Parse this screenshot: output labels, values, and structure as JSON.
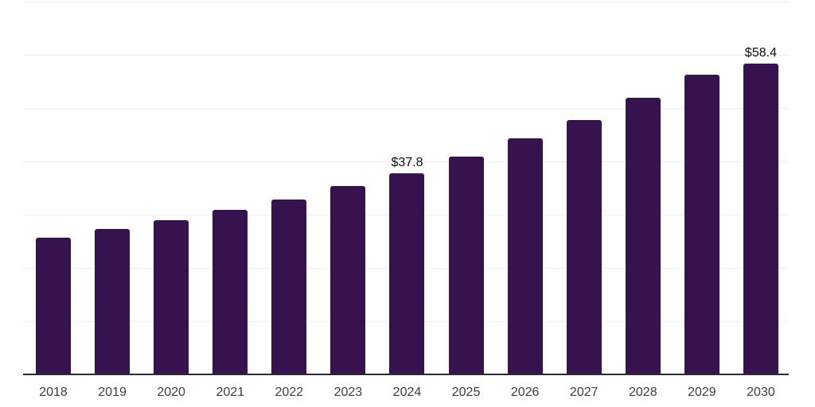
{
  "chart_data": {
    "type": "bar",
    "title": "",
    "xlabel": "",
    "ylabel": "",
    "categories": [
      "2018",
      "2019",
      "2020",
      "2021",
      "2022",
      "2023",
      "2024",
      "2025",
      "2026",
      "2027",
      "2028",
      "2029",
      "2030"
    ],
    "values": [
      25.6,
      27.3,
      29.0,
      30.9,
      32.8,
      35.3,
      37.8,
      40.9,
      44.3,
      47.8,
      51.9,
      56.3,
      58.4
    ],
    "value_labels": [
      null,
      null,
      null,
      null,
      null,
      null,
      "$37.8",
      null,
      null,
      null,
      null,
      null,
      "$58.4"
    ],
    "ylim": [
      0,
      70
    ],
    "gridline_step": 10,
    "grid": "horizontal",
    "legend_position": "none",
    "colors": {
      "bar": "#36124f",
      "value_label": "#0d0d0d",
      "tick_label": "#3d3d3d",
      "axis_line": "#2b2b2b",
      "gridline": "#f0f0f0",
      "background": "#ffffff"
    }
  }
}
